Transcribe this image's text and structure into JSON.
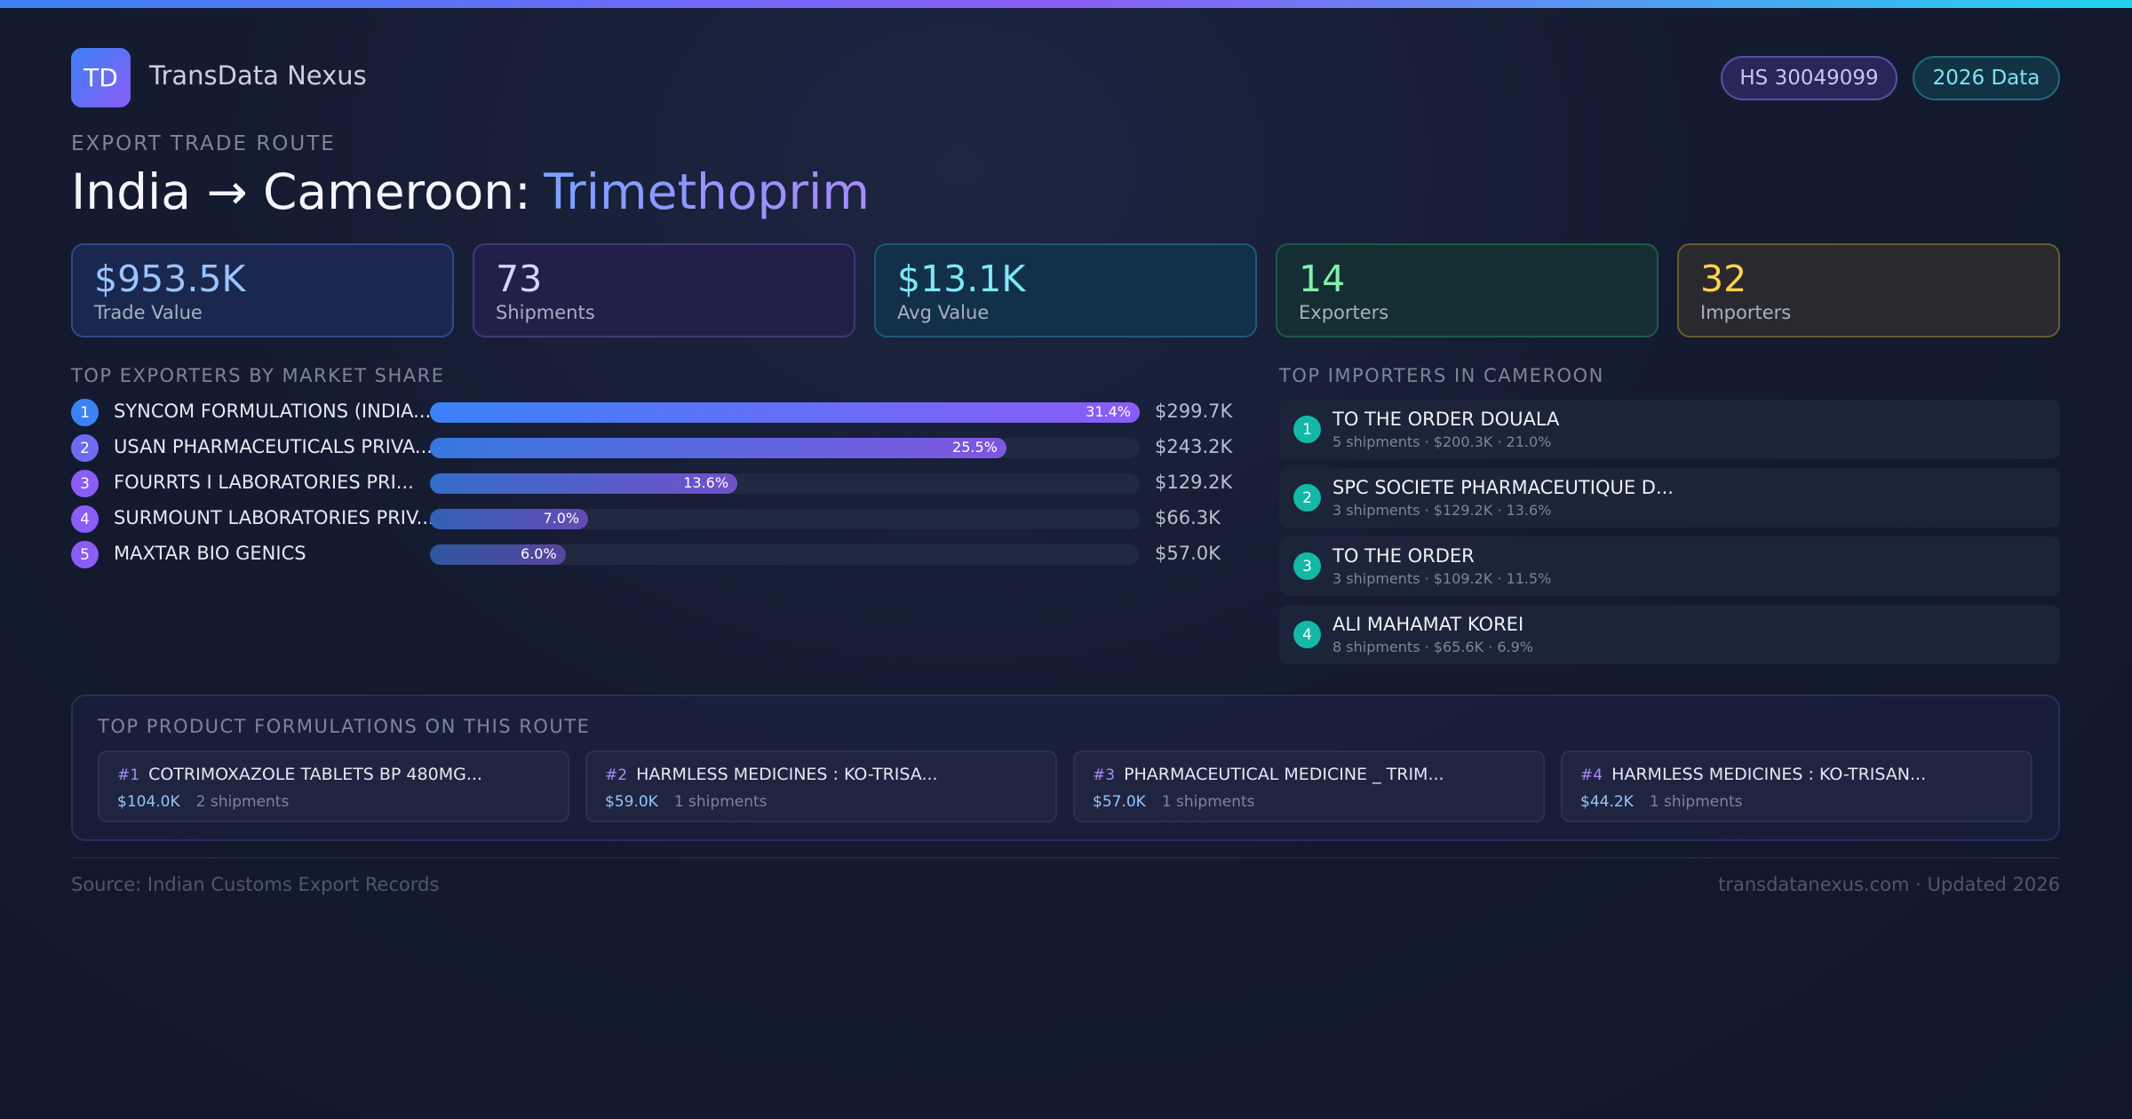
{
  "header": {
    "logo": "TD",
    "brand": "TransData Nexus",
    "badges": [
      "HS 30049099",
      "2026 Data"
    ]
  },
  "route": {
    "eyebrow": "EXPORT TRADE ROUTE",
    "title_prefix": "India → Cameroon:",
    "title_product": "Trimethoprim"
  },
  "stats": [
    {
      "value": "$953.5K",
      "label": "Trade Value"
    },
    {
      "value": "73",
      "label": "Shipments"
    },
    {
      "value": "$13.1K",
      "label": "Avg Value"
    },
    {
      "value": "14",
      "label": "Exporters"
    },
    {
      "value": "32",
      "label": "Importers"
    }
  ],
  "exporters": {
    "heading": "TOP EXPORTERS BY MARKET SHARE",
    "items": [
      {
        "rank": 1,
        "name": "SYNCOM FORMULATIONS (INDIA...",
        "share": 31.4,
        "share_label": "31.4%",
        "value": "$299.7K"
      },
      {
        "rank": 2,
        "name": "USAN PHARMACEUTICALS PRIVA...",
        "share": 25.5,
        "share_label": "25.5%",
        "value": "$243.2K"
      },
      {
        "rank": 3,
        "name": "FOURRTS I LABORATORIES PRI...",
        "share": 13.6,
        "share_label": "13.6%",
        "value": "$129.2K"
      },
      {
        "rank": 4,
        "name": "SURMOUNT LABORATORIES PRIV...",
        "share": 7.0,
        "share_label": "7.0%",
        "value": "$66.3K"
      },
      {
        "rank": 5,
        "name": "MAXTAR BIO GENICS",
        "share": 6.0,
        "share_label": "6.0%",
        "value": "$57.0K"
      }
    ]
  },
  "importers": {
    "heading": "TOP IMPORTERS IN CAMEROON",
    "items": [
      {
        "rank": 1,
        "name": "TO THE ORDER DOUALA",
        "details": "5 shipments · $200.3K · 21.0%"
      },
      {
        "rank": 2,
        "name": "SPC SOCIETE PHARMACEUTIQUE D...",
        "details": "3 shipments · $129.2K · 13.6%"
      },
      {
        "rank": 3,
        "name": "TO THE ORDER",
        "details": "3 shipments · $109.2K · 11.5%"
      },
      {
        "rank": 4,
        "name": "ALI MAHAMAT KOREI",
        "details": "8 shipments · $65.6K · 6.9%"
      }
    ]
  },
  "products": {
    "heading": "TOP PRODUCT FORMULATIONS ON THIS ROUTE",
    "items": [
      {
        "rank": "#1",
        "name": "COTRIMOXAZOLE TABLETS BP 480MG...",
        "value": "$104.0K",
        "shipments": "2 shipments"
      },
      {
        "rank": "#2",
        "name": "HARMLESS MEDICINES : KO-TRISA...",
        "value": "$59.0K",
        "shipments": "1 shipments"
      },
      {
        "rank": "#3",
        "name": "PHARMACEUTICAL MEDICINE _ TRIM...",
        "value": "$57.0K",
        "shipments": "1 shipments"
      },
      {
        "rank": "#4",
        "name": "HARMLESS MEDICINES : KO-TRISAN...",
        "value": "$44.2K",
        "shipments": "1 shipments"
      }
    ]
  },
  "footer": {
    "source": "Source: Indian Customs Export Records",
    "site": "transdatanexus.com · Updated 2026"
  }
}
